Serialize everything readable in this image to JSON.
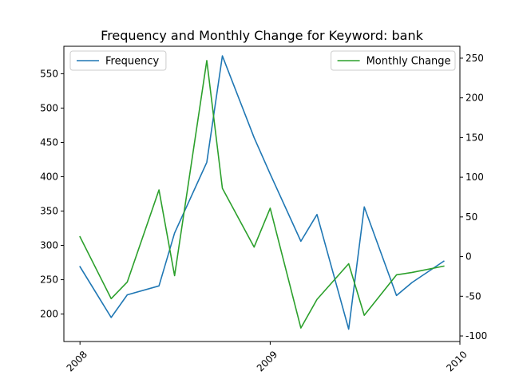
{
  "chart_data": {
    "type": "line",
    "title": "Frequency and Monthly Change for Keyword: bank",
    "xlabel": "",
    "ylabel_left": "",
    "ylabel_right": "",
    "x_ticks": [
      "2008",
      "2009",
      "2010"
    ],
    "x_range": [
      "2007-12-01",
      "2010-01-01"
    ],
    "y_left": {
      "lim": [
        160,
        590
      ],
      "ticks": [
        200,
        250,
        300,
        350,
        400,
        450,
        500,
        550
      ]
    },
    "y_right": {
      "lim": [
        -107,
        265
      ],
      "ticks": [
        -100,
        -50,
        0,
        50,
        100,
        150,
        200,
        250
      ]
    },
    "grid": false,
    "series": [
      {
        "name": "Frequency",
        "axis": "left",
        "color": "#1f77b4",
        "legend_position": "upper left",
        "x": [
          "2008-01-01",
          "2008-03-01",
          "2008-04-01",
          "2008-06-01",
          "2008-07-01",
          "2008-09-01",
          "2008-10-01",
          "2008-12-01",
          "2009-01-01",
          "2009-03-01",
          "2009-04-01",
          "2009-06-01",
          "2009-07-01",
          "2009-09-01",
          "2009-10-01",
          "2009-12-01"
        ],
        "values": [
          269,
          195,
          228,
          241,
          318,
          421,
          576,
          457,
          404,
          306,
          345,
          178,
          356,
          227,
          246,
          277
        ]
      },
      {
        "name": "Monthly Change",
        "axis": "right",
        "color": "#2ca02c",
        "legend_position": "upper right",
        "x": [
          "2008-01-01",
          "2008-03-01",
          "2008-04-01",
          "2008-06-01",
          "2008-07-01",
          "2008-09-01",
          "2008-10-01",
          "2008-12-01",
          "2009-01-01",
          "2009-03-01",
          "2009-04-01",
          "2009-06-01",
          "2009-07-01",
          "2009-09-01",
          "2009-10-01",
          "2009-12-01"
        ],
        "values": [
          25,
          -53,
          -32,
          84,
          -24,
          247,
          86,
          12,
          61,
          -90,
          -54,
          -9,
          -74,
          -23,
          -20,
          -12
        ]
      }
    ]
  }
}
